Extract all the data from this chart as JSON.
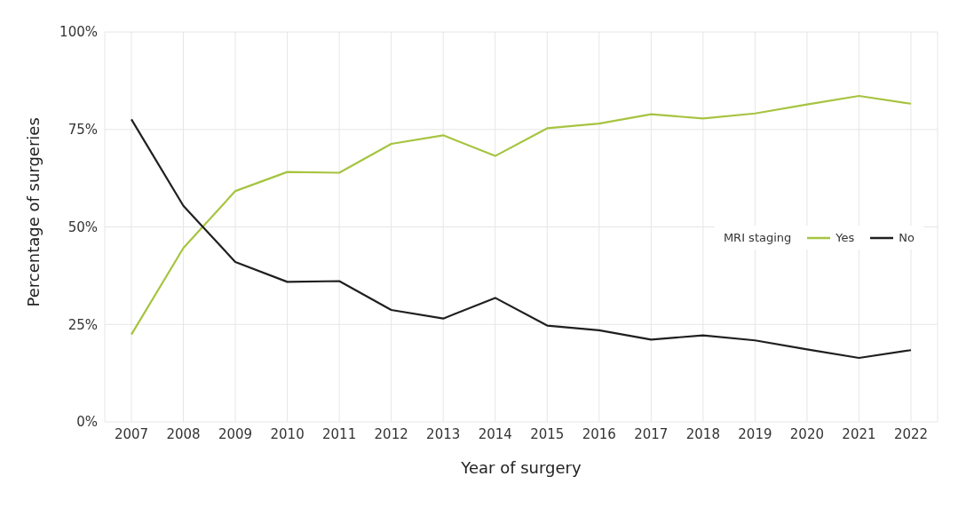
{
  "chart_data": {
    "type": "line",
    "xlabel": "Year of surgery",
    "ylabel": "Percentage of surgeries",
    "legend_title": "MRI staging",
    "categories": [
      "2007",
      "2008",
      "2009",
      "2010",
      "2011",
      "2012",
      "2013",
      "2014",
      "2015",
      "2016",
      "2017",
      "2018",
      "2019",
      "2020",
      "2021",
      "2022"
    ],
    "series": [
      {
        "name": "Yes",
        "color": "#a6c440",
        "values": [
          22.4,
          44.6,
          59.2,
          64.1,
          63.9,
          71.3,
          73.5,
          68.2,
          75.3,
          76.5,
          78.9,
          77.8,
          79.1,
          81.4,
          83.6,
          81.6
        ]
      },
      {
        "name": "No",
        "color": "#1f1f1f",
        "values": [
          77.6,
          55.4,
          41.0,
          35.9,
          36.1,
          28.7,
          26.5,
          31.8,
          24.7,
          23.5,
          21.1,
          22.2,
          20.9,
          18.6,
          16.4,
          18.4
        ]
      }
    ],
    "ylim": [
      0,
      100
    ],
    "yticks": [
      {
        "value": 0,
        "label": "0%"
      },
      {
        "value": 25,
        "label": "25%"
      },
      {
        "value": 50,
        "label": "50%"
      },
      {
        "value": 75,
        "label": "75%"
      },
      {
        "value": 100,
        "label": "100%"
      }
    ],
    "grid": true,
    "legend": "right",
    "marker": "none",
    "line_style": "solid"
  }
}
